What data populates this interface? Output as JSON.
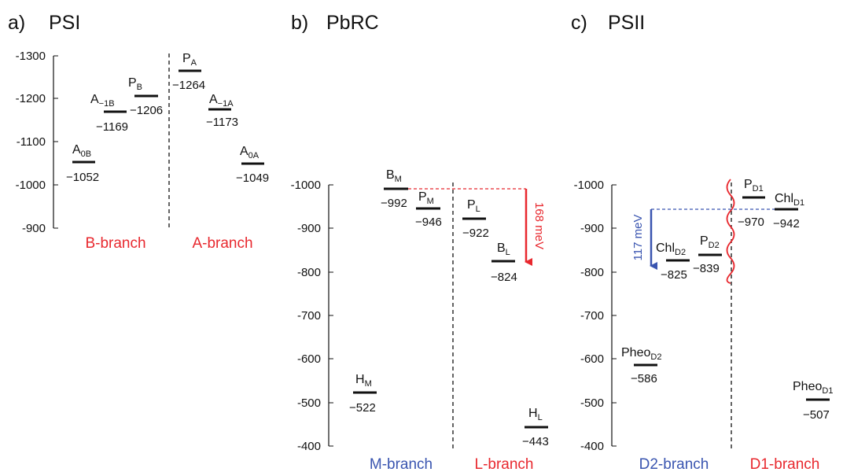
{
  "colors": {
    "red": "#e8282e",
    "blue": "#3a55b0",
    "black": "#111111"
  },
  "panels": [
    {
      "id": "a",
      "letter": "a)",
      "title": "PSI",
      "y_ticks": [
        "-1300",
        "-1200",
        "-1100",
        "-1000",
        "-900"
      ],
      "branches": [
        {
          "name": "B-branch",
          "color": "red"
        },
        {
          "name": "A-branch",
          "color": "red"
        }
      ],
      "levels": [
        {
          "base": "A",
          "sub": "0B",
          "value_label": "−1052",
          "energy": -1052
        },
        {
          "base": "A",
          "sub": "−1B",
          "value_label": "−1169",
          "energy": -1169
        },
        {
          "base": "P",
          "sub": "B",
          "value_label": "−1206",
          "energy": -1206
        },
        {
          "base": "P",
          "sub": "A",
          "value_label": "−1264",
          "energy": -1264
        },
        {
          "base": "A",
          "sub": "−1A",
          "value_label": "−1173",
          "energy": -1173
        },
        {
          "base": "A",
          "sub": "0A",
          "value_label": "−1049",
          "energy": -1049
        }
      ]
    },
    {
      "id": "b",
      "letter": "b)",
      "title": "PbRC",
      "y_ticks": [
        "-1000",
        "-900",
        "-800",
        "-700",
        "-600",
        "-500",
        "-400"
      ],
      "branches": [
        {
          "name": "M-branch",
          "color": "blue"
        },
        {
          "name": "L-branch",
          "color": "red"
        }
      ],
      "annotation": {
        "text": "168 meV",
        "value_meV": 168,
        "color": "red"
      },
      "levels": [
        {
          "base": "B",
          "sub": "M",
          "value_label": "−992",
          "energy": -992
        },
        {
          "base": "P",
          "sub": "M",
          "value_label": "−946",
          "energy": -946
        },
        {
          "base": "P",
          "sub": "L",
          "value_label": "−922",
          "energy": -922
        },
        {
          "base": "B",
          "sub": "L",
          "value_label": "−824",
          "energy": -824
        },
        {
          "base": "H",
          "sub": "M",
          "value_label": "−522",
          "energy": -522
        },
        {
          "base": "H",
          "sub": "L",
          "value_label": "−443",
          "energy": -443
        }
      ]
    },
    {
      "id": "c",
      "letter": "c)",
      "title": "PSII",
      "y_ticks": [
        "-1000",
        "-900",
        "-800",
        "-700",
        "-600",
        "-500",
        "-400"
      ],
      "branches": [
        {
          "name": "D2-branch",
          "color": "blue"
        },
        {
          "name": "D1-branch",
          "color": "red"
        }
      ],
      "annotation": {
        "text": "117 meV",
        "value_meV": 117,
        "color": "blue"
      },
      "levels": [
        {
          "base": "P",
          "sub": "D1",
          "value_label": "−970",
          "energy": -970
        },
        {
          "base": "Chl",
          "sub": "D1",
          "value_label": "−942",
          "energy": -942
        },
        {
          "base": "Chl",
          "sub": "D2",
          "value_label": "−825",
          "energy": -825
        },
        {
          "base": "P",
          "sub": "D2",
          "value_label": "−839",
          "energy": -839
        },
        {
          "base": "Pheo",
          "sub": "D2",
          "value_label": "−586",
          "energy": -586
        },
        {
          "base": "Pheo",
          "sub": "D1",
          "value_label": "−507",
          "energy": -507
        }
      ]
    }
  ]
}
